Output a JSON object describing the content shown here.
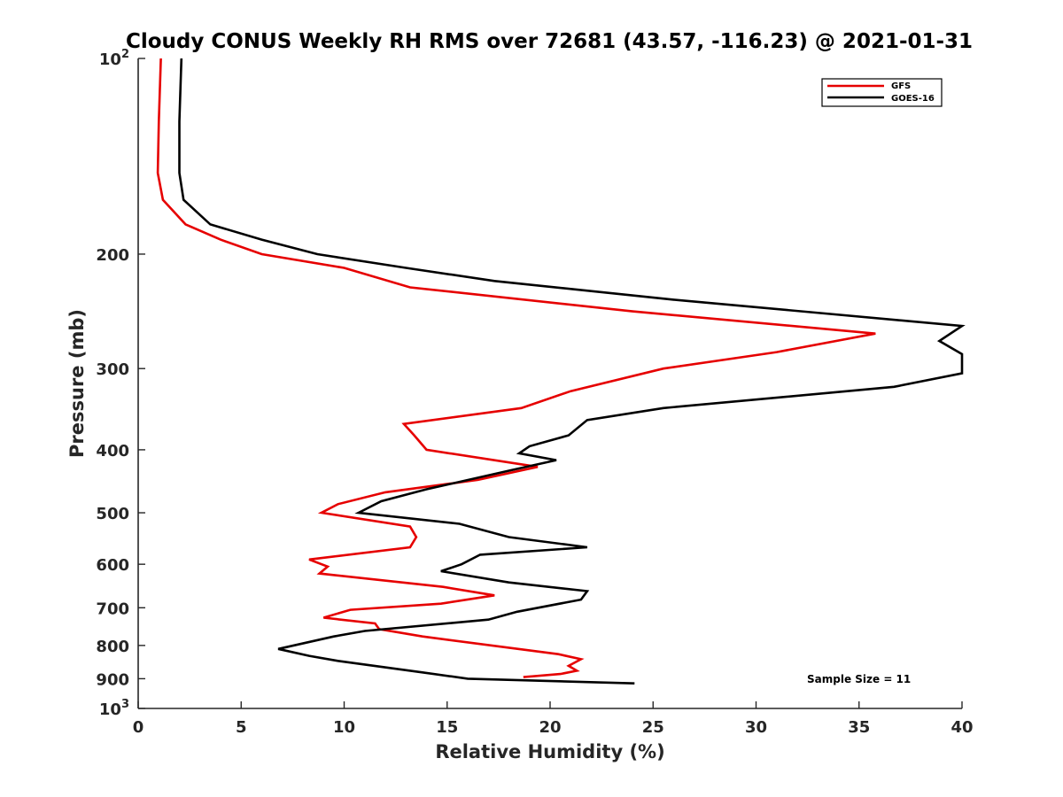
{
  "chart_data": {
    "type": "line",
    "title": "Cloudy CONUS Weekly RH RMS over 72681 (43.57, -116.23) @ 2021-01-31",
    "xlabel": "Relative Humidity (%)",
    "ylabel": "Pressure (mb)",
    "xlim": [
      0,
      40
    ],
    "ylim": [
      100,
      1000
    ],
    "y_scale": "log",
    "y_reversed": true,
    "x_ticks": [
      "0",
      "5",
      "10",
      "15",
      "20",
      "25",
      "30",
      "35",
      "40"
    ],
    "y_ticks": [
      {
        "value": 100,
        "base": "10",
        "exp": "2"
      },
      {
        "value": 200,
        "label": "200"
      },
      {
        "value": 300,
        "label": "300"
      },
      {
        "value": 400,
        "label": "400"
      },
      {
        "value": 500,
        "label": "500"
      },
      {
        "value": 600,
        "label": "600"
      },
      {
        "value": 700,
        "label": "700"
      },
      {
        "value": 800,
        "label": "800"
      },
      {
        "value": 900,
        "label": "900"
      },
      {
        "value": 1000,
        "base": "10",
        "exp": "3"
      }
    ],
    "legend_position": "top-right",
    "grid": false,
    "annotation": "Sample Size = 11",
    "series": [
      {
        "name": "GFS",
        "color": "#e60000",
        "points": [
          [
            1.1,
            100
          ],
          [
            1.0,
            125
          ],
          [
            0.95,
            150
          ],
          [
            1.2,
            165
          ],
          [
            2.3,
            180
          ],
          [
            4.0,
            190
          ],
          [
            6.0,
            200
          ],
          [
            10.0,
            210
          ],
          [
            13.2,
            225
          ],
          [
            24.0,
            245
          ],
          [
            35.8,
            265
          ],
          [
            31.0,
            283
          ],
          [
            25.5,
            300
          ],
          [
            21.0,
            325
          ],
          [
            18.6,
            345
          ],
          [
            12.9,
            365
          ],
          [
            13.4,
            380
          ],
          [
            14.0,
            400
          ],
          [
            19.4,
            425
          ],
          [
            16.5,
            445
          ],
          [
            12.0,
            465
          ],
          [
            9.7,
            485
          ],
          [
            8.9,
            500
          ],
          [
            13.2,
            525
          ],
          [
            13.5,
            545
          ],
          [
            13.2,
            565
          ],
          [
            8.3,
            590
          ],
          [
            9.2,
            605
          ],
          [
            8.8,
            620
          ],
          [
            14.8,
            650
          ],
          [
            17.3,
            670
          ],
          [
            14.7,
            690
          ],
          [
            10.3,
            705
          ],
          [
            9.0,
            725
          ],
          [
            11.5,
            740
          ],
          [
            11.7,
            755
          ],
          [
            13.8,
            775
          ],
          [
            20.4,
            825
          ],
          [
            21.5,
            840
          ],
          [
            20.9,
            860
          ],
          [
            21.3,
            875
          ],
          [
            20.5,
            885
          ],
          [
            18.7,
            895
          ]
        ]
      },
      {
        "name": "GOES-16",
        "color": "#000000",
        "points": [
          [
            2.1,
            100
          ],
          [
            2.0,
            125
          ],
          [
            2.0,
            150
          ],
          [
            2.2,
            165
          ],
          [
            3.5,
            180
          ],
          [
            6.0,
            190
          ],
          [
            8.7,
            200
          ],
          [
            13.0,
            210
          ],
          [
            17.3,
            220
          ],
          [
            26.0,
            235
          ],
          [
            40.0,
            258
          ],
          [
            38.9,
            272
          ],
          [
            40.0,
            285
          ],
          [
            40.0,
            305
          ],
          [
            36.7,
            320
          ],
          [
            25.5,
            345
          ],
          [
            21.8,
            360
          ],
          [
            20.9,
            380
          ],
          [
            19.0,
            395
          ],
          [
            18.5,
            405
          ],
          [
            20.3,
            415
          ],
          [
            18.1,
            430
          ],
          [
            14.0,
            460
          ],
          [
            11.8,
            480
          ],
          [
            10.7,
            500
          ],
          [
            15.6,
            520
          ],
          [
            18.0,
            545
          ],
          [
            21.8,
            565
          ],
          [
            16.6,
            580
          ],
          [
            15.7,
            600
          ],
          [
            14.7,
            615
          ],
          [
            18.0,
            640
          ],
          [
            21.8,
            660
          ],
          [
            21.5,
            680
          ],
          [
            18.4,
            710
          ],
          [
            17.0,
            730
          ],
          [
            11.0,
            760
          ],
          [
            9.5,
            775
          ],
          [
            6.8,
            810
          ],
          [
            8.3,
            830
          ],
          [
            9.7,
            845
          ],
          [
            13.8,
            880
          ],
          [
            16.0,
            900
          ],
          [
            24.1,
            915
          ]
        ]
      }
    ]
  }
}
